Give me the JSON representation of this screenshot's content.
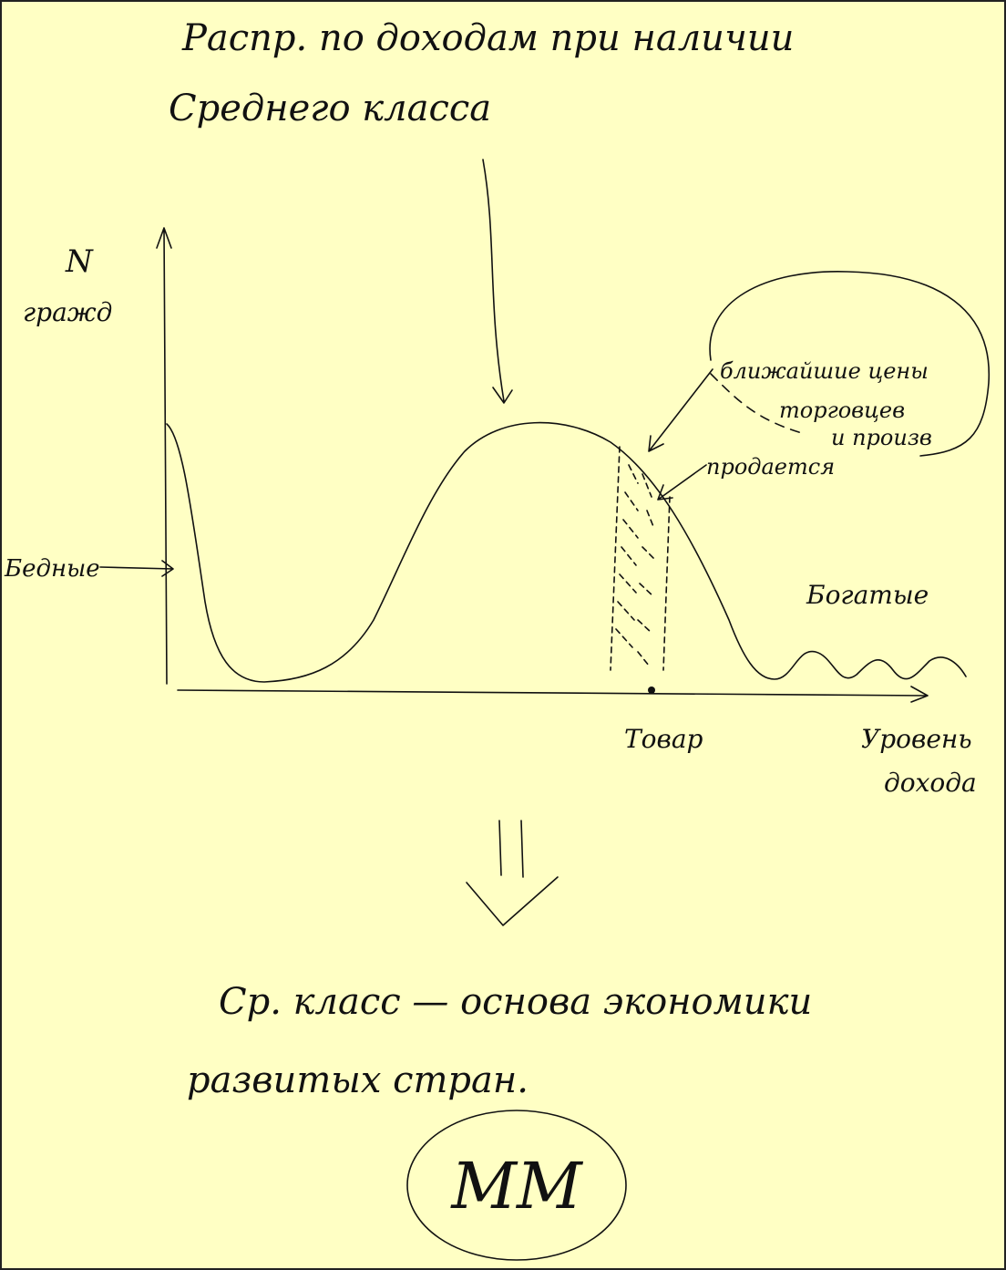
{
  "title": {
    "line1": "Распр. по доходам при наличии",
    "line2": "Среднего класса"
  },
  "y_axis_label": {
    "line1": "N",
    "line2": "гражд"
  },
  "x_axis_label": {
    "line1": "Уровень",
    "line2": "дохода"
  },
  "labels": {
    "poor": "Бедные",
    "rich": "Богатые",
    "product": "Товар",
    "sold": "продается",
    "prices": {
      "line1": "ближайшие цены",
      "line2": "торговцев",
      "line3": "и произв"
    }
  },
  "conclusion": {
    "line1": "Ср. класс — основа экономики",
    "line2": "развитых стран."
  },
  "signature": "ММ"
}
